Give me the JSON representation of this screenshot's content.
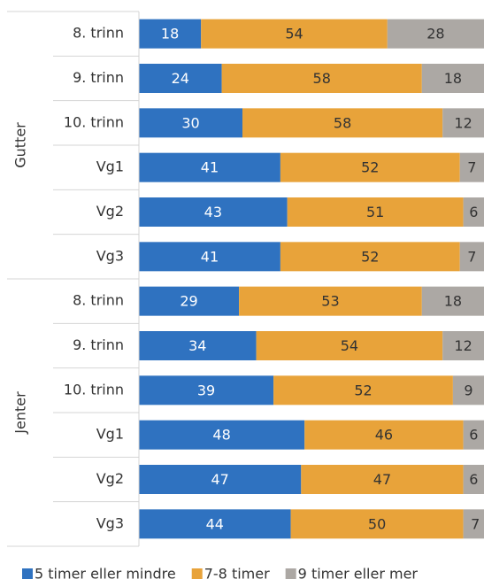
{
  "chart_data": {
    "type": "stacked_barh",
    "groups": [
      "Gutter",
      "Jenter"
    ],
    "categories": [
      "8. trinn",
      "9. trinn",
      "10. trinn",
      "Vg1",
      "Vg2",
      "Vg3",
      "8. trinn",
      "9. trinn",
      "10. trinn",
      "Vg1",
      "Vg2",
      "Vg3"
    ],
    "series": [
      {
        "name": "5 timer eller mindre",
        "color": "#2f72c0",
        "label_color": "#ffffff",
        "values": [
          18,
          24,
          30,
          41,
          43,
          41,
          29,
          34,
          39,
          48,
          47,
          44
        ]
      },
      {
        "name": "7-8 timer",
        "color": "#e8a33a",
        "label_color": "#333333",
        "values": [
          54,
          58,
          58,
          52,
          51,
          52,
          53,
          54,
          52,
          46,
          47,
          50
        ]
      },
      {
        "name": "9 timer eller mer",
        "color": "#aca8a4",
        "label_color": "#333333",
        "values": [
          28,
          18,
          12,
          7,
          6,
          7,
          18,
          12,
          9,
          6,
          6,
          7
        ]
      }
    ],
    "xlim": [
      0,
      100
    ]
  }
}
